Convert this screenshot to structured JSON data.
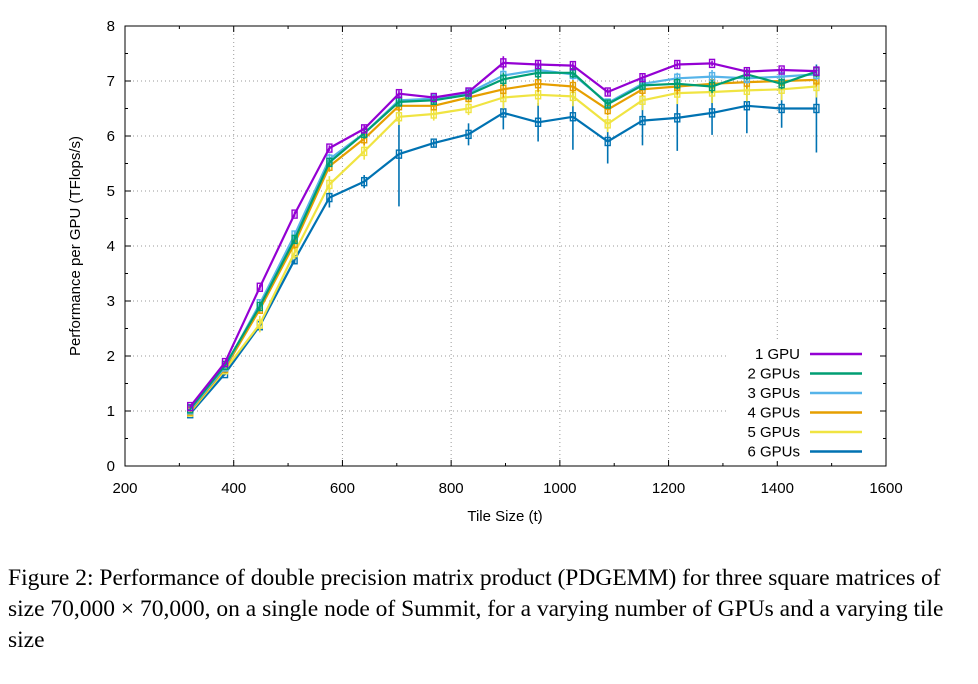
{
  "chart_data": {
    "type": "line",
    "xlabel": "Tile Size (t)",
    "ylabel": "Performance per GPU (TFlops/s)",
    "xlim": [
      200,
      1600
    ],
    "ylim": [
      0,
      8
    ],
    "xticks": [
      "200",
      "400",
      "600",
      "800",
      "1000",
      "1200",
      "1400",
      "1600"
    ],
    "yticks": [
      "0",
      "1",
      "2",
      "3",
      "4",
      "5",
      "6",
      "7",
      "8"
    ],
    "grid": true,
    "legend_position": "bottom-right",
    "x": [
      320,
      384,
      448,
      512,
      576,
      640,
      704,
      768,
      832,
      896,
      960,
      1024,
      1088,
      1152,
      1216,
      1280,
      1344,
      1408,
      1472
    ],
    "series": [
      {
        "name": "1 GPU",
        "color": "#9400d3",
        "values": [
          1.08,
          1.88,
          3.25,
          4.58,
          5.78,
          6.13,
          6.77,
          6.7,
          6.8,
          7.33,
          7.3,
          7.28,
          6.8,
          7.06,
          7.3,
          7.32,
          7.17,
          7.2,
          7.18
        ],
        "errors": [
          0.03,
          0.03,
          0.05,
          0.05,
          0.05,
          0.06,
          0.06,
          0.04,
          0.05,
          0.12,
          0.06,
          0.06,
          0.06,
          0.06,
          0.06,
          0.05,
          0.06,
          0.05,
          0.05
        ]
      },
      {
        "name": "2 GPUs",
        "color": "#009e73",
        "values": [
          1.04,
          1.83,
          2.9,
          4.12,
          5.52,
          6.05,
          6.62,
          6.65,
          6.75,
          7.03,
          7.15,
          7.15,
          6.58,
          6.92,
          6.95,
          6.9,
          7.12,
          6.95,
          7.17
        ],
        "errors": [
          0.03,
          0.03,
          0.08,
          0.08,
          0.08,
          0.1,
          0.08,
          0.06,
          0.07,
          0.12,
          0.12,
          0.1,
          0.08,
          0.08,
          0.1,
          0.12,
          0.1,
          0.1,
          0.1
        ]
      },
      {
        "name": "3 GPUs",
        "color": "#56b4e9",
        "values": [
          1.02,
          1.8,
          2.95,
          4.2,
          5.58,
          6.05,
          6.65,
          6.68,
          6.78,
          7.1,
          7.2,
          7.12,
          6.6,
          6.95,
          7.05,
          7.08,
          7.05,
          7.08,
          7.12
        ],
        "errors": [
          0.03,
          0.04,
          0.08,
          0.08,
          0.1,
          0.1,
          0.08,
          0.06,
          0.07,
          0.12,
          0.12,
          0.1,
          0.08,
          0.1,
          0.1,
          0.12,
          0.1,
          0.1,
          0.1
        ]
      },
      {
        "name": "4 GPUs",
        "color": "#e69f00",
        "values": [
          1.0,
          1.78,
          2.85,
          4.05,
          5.45,
          5.95,
          6.55,
          6.55,
          6.7,
          6.85,
          6.95,
          6.9,
          6.48,
          6.85,
          6.9,
          6.95,
          6.98,
          7.0,
          7.02
        ],
        "errors": [
          0.03,
          0.04,
          0.08,
          0.1,
          0.1,
          0.12,
          0.1,
          0.08,
          0.08,
          0.15,
          0.15,
          0.12,
          0.1,
          0.12,
          0.15,
          0.15,
          0.12,
          0.12,
          0.12
        ]
      },
      {
        "name": "5 GPUs",
        "color": "#f0e442",
        "values": [
          0.98,
          1.75,
          2.58,
          3.88,
          5.12,
          5.72,
          6.35,
          6.4,
          6.5,
          6.7,
          6.75,
          6.72,
          6.22,
          6.65,
          6.78,
          6.8,
          6.83,
          6.85,
          6.9
        ],
        "errors": [
          0.03,
          0.04,
          0.15,
          0.12,
          0.15,
          0.15,
          0.15,
          0.12,
          0.12,
          0.2,
          0.2,
          0.18,
          0.15,
          0.18,
          0.2,
          0.2,
          0.2,
          0.2,
          0.2
        ]
      },
      {
        "name": "6 GPUs",
        "color": "#0072b2",
        "values": [
          0.95,
          1.68,
          2.55,
          3.75,
          4.88,
          5.17,
          5.67,
          5.87,
          6.03,
          6.42,
          6.25,
          6.35,
          5.9,
          6.28,
          6.33,
          6.42,
          6.55,
          6.5,
          6.5
        ],
        "errors": [
          0.03,
          0.03,
          0.08,
          0.08,
          0.18,
          0.12,
          0.95,
          0.06,
          0.2,
          0.3,
          0.35,
          0.6,
          0.4,
          0.45,
          0.6,
          0.4,
          0.5,
          0.35,
          0.8
        ]
      }
    ]
  },
  "caption": "Figure 2: Performance of double precision matrix product (PDGEMM) for three square matrices of size 70,000 × 70,000, on a single node of Summit, for a varying number of GPUs and a varying tile size"
}
